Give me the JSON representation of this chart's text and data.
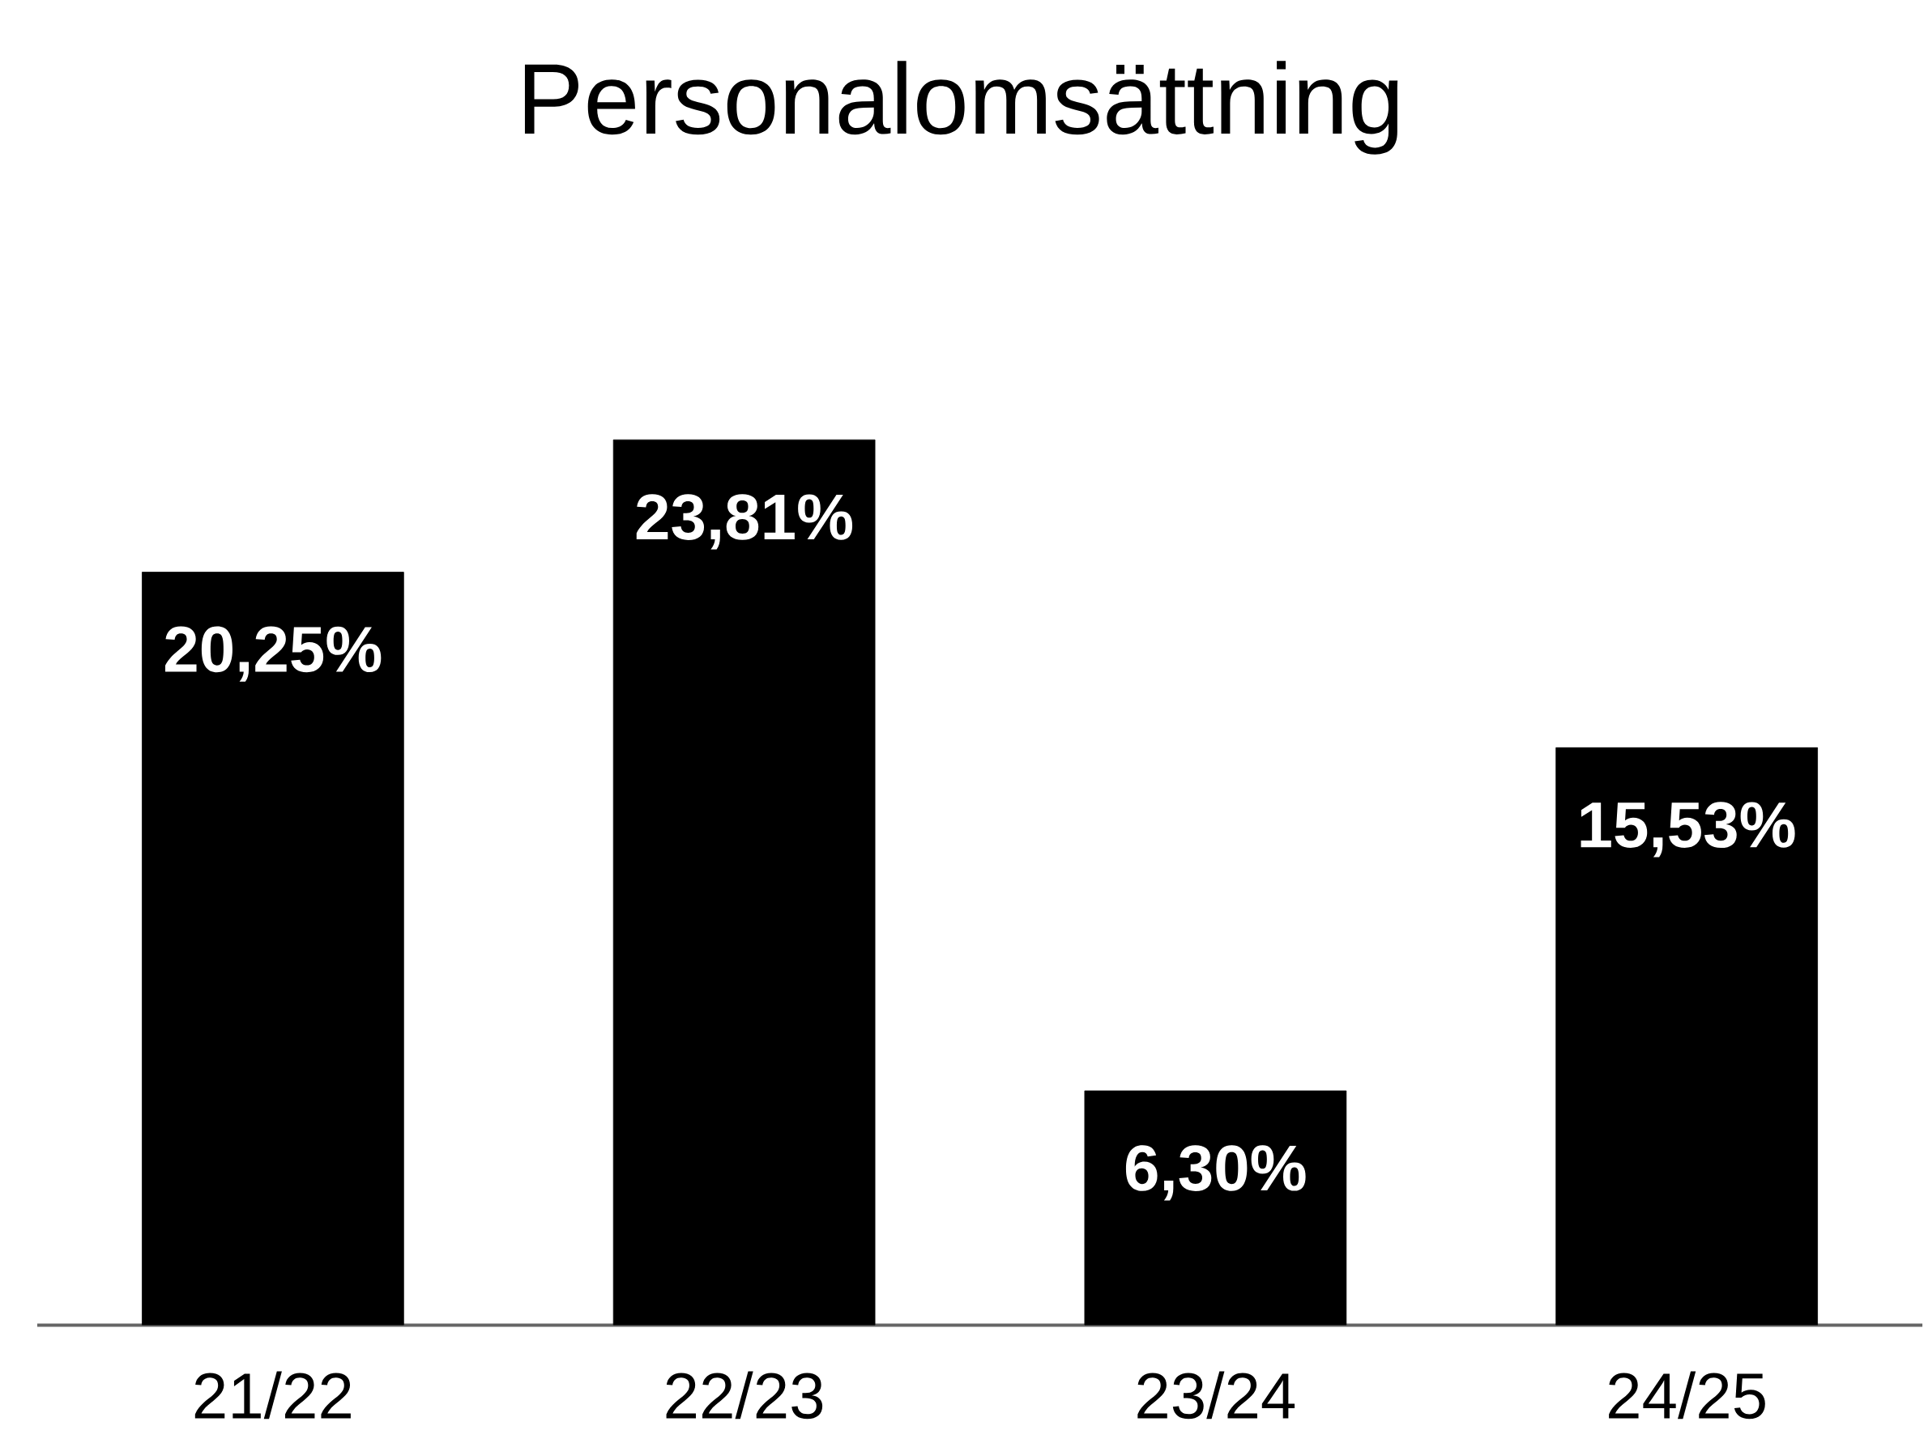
{
  "chart_data": {
    "type": "bar",
    "title": "Personalomsättning",
    "categories": [
      "21/22",
      "22/23",
      "23/24",
      "24/25"
    ],
    "values": [
      20.25,
      23.81,
      6.3,
      15.53
    ],
    "value_labels": [
      "20,25%",
      "23,81%",
      "6,30%",
      "15,53%"
    ],
    "color": "#000000"
  }
}
